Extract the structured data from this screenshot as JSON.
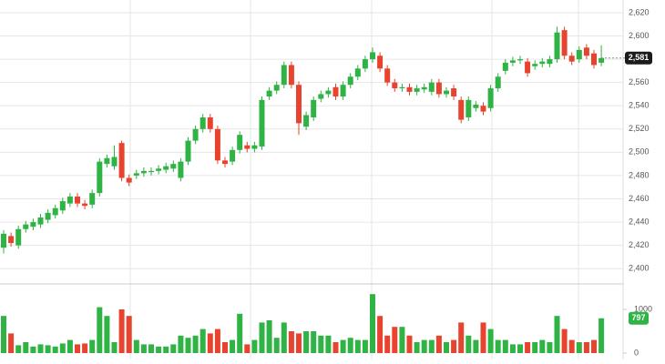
{
  "chart_data": {
    "type": "candlestick",
    "open": [
      2418,
      2428,
      2420,
      2434,
      2436,
      2438,
      2442,
      2446,
      2450,
      2456,
      2462,
      2456,
      2455,
      2465,
      2490,
      2488,
      2508,
      2478,
      2480,
      2482,
      2483,
      2484,
      2485,
      2486,
      2478,
      2492,
      2510,
      2520,
      2530,
      2520,
      2493,
      2492,
      2502,
      2506,
      2503,
      2505,
      2548,
      2553,
      2558,
      2575,
      2558,
      2522,
      2530,
      2546,
      2550,
      2556,
      2548,
      2558,
      2565,
      2572,
      2580,
      2583,
      2572,
      2560,
      2555,
      2556,
      2552,
      2554,
      2552,
      2560,
      2550,
      2555,
      2545,
      2530,
      2538,
      2540,
      2538,
      2555,
      2570,
      2577,
      2579,
      2578,
      2574,
      2576,
      2576,
      2580,
      2605,
      2583,
      2580,
      2590,
      2585,
      2577
    ],
    "high": [
      2433,
      2431,
      2437,
      2441,
      2443,
      2447,
      2451,
      2455,
      2461,
      2465,
      2465,
      2459,
      2468,
      2495,
      2498,
      2506,
      2510,
      2481,
      2485,
      2487,
      2487,
      2489,
      2491,
      2493,
      2495,
      2513,
      2523,
      2533,
      2533,
      2523,
      2496,
      2505,
      2518,
      2509,
      2509,
      2548,
      2556,
      2561,
      2578,
      2578,
      2561,
      2535,
      2548,
      2553,
      2556,
      2559,
      2561,
      2568,
      2575,
      2583,
      2590,
      2586,
      2575,
      2563,
      2559,
      2559,
      2558,
      2559,
      2563,
      2563,
      2556,
      2558,
      2548,
      2548,
      2544,
      2543,
      2558,
      2568,
      2580,
      2582,
      2583,
      2581,
      2579,
      2581,
      2583,
      2608,
      2608,
      2586,
      2591,
      2593,
      2588,
      2592
    ],
    "low": [
      2413,
      2419,
      2417,
      2431,
      2433,
      2435,
      2439,
      2443,
      2447,
      2453,
      2453,
      2451,
      2452,
      2462,
      2487,
      2485,
      2475,
      2471,
      2477,
      2479,
      2480,
      2481,
      2482,
      2483,
      2475,
      2489,
      2507,
      2517,
      2517,
      2490,
      2487,
      2489,
      2499,
      2500,
      2500,
      2502,
      2545,
      2550,
      2555,
      2555,
      2515,
      2519,
      2527,
      2543,
      2547,
      2545,
      2545,
      2555,
      2562,
      2569,
      2577,
      2569,
      2557,
      2552,
      2552,
      2549,
      2549,
      2551,
      2549,
      2547,
      2547,
      2545,
      2525,
      2527,
      2535,
      2532,
      2535,
      2552,
      2567,
      2574,
      2576,
      2565,
      2571,
      2573,
      2573,
      2577,
      2580,
      2575,
      2577,
      2580,
      2572,
      2574
    ],
    "close": [
      2430,
      2422,
      2434,
      2438,
      2440,
      2444,
      2448,
      2452,
      2458,
      2462,
      2456,
      2454,
      2465,
      2492,
      2495,
      2496,
      2478,
      2474,
      2482,
      2484,
      2484,
      2486,
      2488,
      2490,
      2492,
      2510,
      2520,
      2530,
      2520,
      2493,
      2490,
      2502,
      2515,
      2503,
      2506,
      2545,
      2553,
      2558,
      2575,
      2558,
      2525,
      2532,
      2545,
      2550,
      2553,
      2548,
      2558,
      2565,
      2572,
      2580,
      2586,
      2572,
      2560,
      2555,
      2556,
      2552,
      2555,
      2556,
      2560,
      2550,
      2553,
      2548,
      2528,
      2545,
      2541,
      2535,
      2555,
      2565,
      2577,
      2579,
      2580,
      2568,
      2576,
      2578,
      2580,
      2603,
      2583,
      2578,
      2588,
      2583,
      2575,
      2581
    ],
    "volume": [
      850,
      450,
      180,
      250,
      150,
      200,
      180,
      150,
      220,
      300,
      200,
      220,
      300,
      1050,
      850,
      250,
      1000,
      850,
      300,
      200,
      200,
      150,
      150,
      200,
      400,
      350,
      400,
      550,
      450,
      550,
      250,
      300,
      900,
      200,
      300,
      700,
      750,
      350,
      700,
      500,
      450,
      500,
      500,
      400,
      400,
      250,
      300,
      350,
      300,
      300,
      1350,
      850,
      400,
      600,
      600,
      400,
      250,
      300,
      300,
      400,
      250,
      300,
      700,
      400,
      300,
      700,
      550,
      300,
      300,
      200,
      200,
      250,
      250,
      300,
      250,
      850,
      550,
      300,
      250,
      250,
      300,
      797
    ],
    "up_color": "#2fb344",
    "down_color": "#e8432e",
    "ylim": [
      2390,
      2627
    ],
    "yticks": [
      {
        "value": 2400,
        "label": "2,400"
      },
      {
        "value": 2420,
        "label": "2,420"
      },
      {
        "value": 2440,
        "label": "2,440"
      },
      {
        "value": 2460,
        "label": "2,460"
      },
      {
        "value": 2480,
        "label": "2,480"
      },
      {
        "value": 2500,
        "label": "2,500"
      },
      {
        "value": 2520,
        "label": "2,520"
      },
      {
        "value": 2540,
        "label": "2,540"
      },
      {
        "value": 2560,
        "label": "2,560"
      },
      {
        "value": 2580,
        "label": "2,580"
      },
      {
        "value": 2600,
        "label": "2,600"
      },
      {
        "value": 2620,
        "label": "2,620"
      }
    ],
    "last_price": {
      "value": 2581,
      "label": "2,581"
    },
    "vlim": [
      0,
      1400
    ],
    "vticks": [
      0,
      1000
    ],
    "grid": true
  }
}
